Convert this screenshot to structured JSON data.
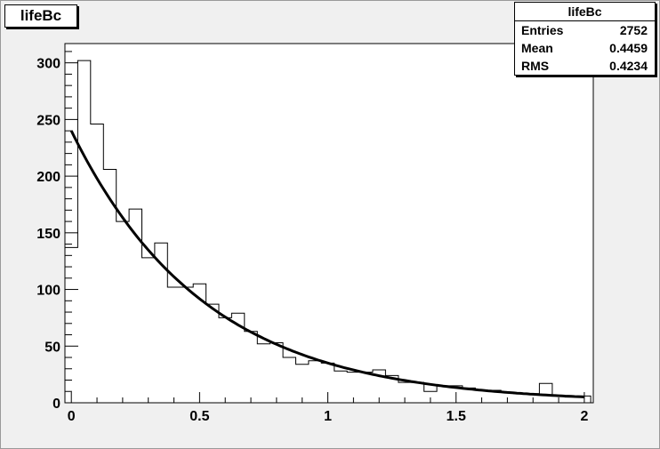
{
  "title": "lifeBc",
  "stats": {
    "title": "lifeBc",
    "rows": [
      {
        "key": "Entries",
        "value": "2752"
      },
      {
        "key": "Mean",
        "value": "0.4459"
      },
      {
        "key": "RMS",
        "value": "0.4234"
      }
    ]
  },
  "chart_data": {
    "type": "bar",
    "title": "lifeBc",
    "xlabel": "",
    "ylabel": "",
    "xlim": [
      -0.025,
      2.035
    ],
    "ylim": [
      0,
      317
    ],
    "x_ticks": [
      "0",
      "0.5",
      "1",
      "1.5",
      "2"
    ],
    "x_tick_values": [
      0,
      0.5,
      1,
      1.5,
      2
    ],
    "y_ticks": [
      "0",
      "50",
      "100",
      "150",
      "200",
      "250",
      "300"
    ],
    "y_tick_values": [
      0,
      50,
      100,
      150,
      200,
      250,
      300
    ],
    "bin_edges": [
      -0.025,
      0.025,
      0.075,
      0.125,
      0.175,
      0.225,
      0.275,
      0.325,
      0.375,
      0.425,
      0.475,
      0.525,
      0.575,
      0.625,
      0.675,
      0.725,
      0.775,
      0.825,
      0.875,
      0.925,
      0.975,
      1.025,
      1.075,
      1.125,
      1.175,
      1.225,
      1.275,
      1.325,
      1.375,
      1.425,
      1.475,
      1.525,
      1.575,
      1.625,
      1.675,
      1.725,
      1.775,
      1.825,
      1.875,
      1.925,
      1.975,
      2.025
    ],
    "histogram": [
      137,
      302,
      246,
      206,
      160,
      171,
      128,
      141,
      102,
      102,
      105,
      87,
      75,
      79,
      63,
      52,
      53,
      40,
      34,
      37,
      35,
      28,
      27,
      27,
      29,
      24,
      18,
      18,
      10,
      15,
      15,
      13,
      11,
      11,
      9,
      8,
      8,
      17,
      6,
      5,
      6
    ],
    "fit": {
      "type": "line",
      "function": "exponential",
      "amplitude": 240,
      "decay": 0.52,
      "x_range": [
        0,
        2
      ]
    },
    "legend_position": "top-right",
    "grid": false
  }
}
